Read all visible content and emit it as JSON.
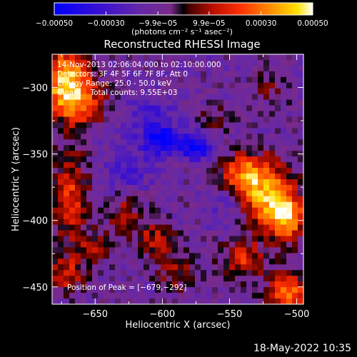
{
  "chart_data": {
    "type": "heatmap",
    "title": "Reconstructed RHESSI Image",
    "xlabel": "Heliocentric X (arcsec)",
    "ylabel": "Heliocentric Y (arcsec)",
    "xlim": [
      -682,
      -495
    ],
    "ylim": [
      -463,
      -275
    ],
    "xticks": [
      {
        "value": -650,
        "label": "−650"
      },
      {
        "value": -600,
        "label": "−600"
      },
      {
        "value": -550,
        "label": "−550"
      },
      {
        "value": -500,
        "label": "−500"
      }
    ],
    "yticks": [
      {
        "value": -300,
        "label": "−300"
      },
      {
        "value": -350,
        "label": "−350"
      },
      {
        "value": -400,
        "label": "−400"
      },
      {
        "value": -450,
        "label": "−450"
      }
    ],
    "colorbar": {
      "min": -0.0005,
      "max": 0.0005,
      "ticks": [
        {
          "value": -0.0005,
          "label": "−0.00050"
        },
        {
          "value": -0.0003,
          "label": "−0.00030"
        },
        {
          "value": -9.9e-05,
          "label": "−9.9e−05"
        },
        {
          "value": 9.9e-05,
          "label": "9.9e−05"
        },
        {
          "value": 0.0003,
          "label": "0.00030"
        },
        {
          "value": 0.0005,
          "label": "0.00050"
        }
      ],
      "unit_label": "(photons cm⁻² s⁻¹ asec⁻²)"
    },
    "annotations": [
      "14-Nov-2013 02:06:04.000 to 02:10:00.000",
      "Detectors: 3F 4F 5F 6F 7F 8F, Att 0",
      "Energy Range: 25.0 - 50.0 keV",
      "Clean     Total counts: 9.55E+03"
    ],
    "peak_label": "Position of Peak = [−679,−292]",
    "peak_position": [
      -679,
      -292
    ],
    "colors": {
      "low": "#0000ff",
      "mid": "#6a2aa6",
      "high": "#ffffff",
      "hot": "#ff3000"
    },
    "intensity_sources": [
      {
        "x": -672,
        "y": -292,
        "amp": 0.0005,
        "sx": 12,
        "sy": 16
      },
      {
        "x": -662,
        "y": -312,
        "amp": 0.00034,
        "sx": 14,
        "sy": 12
      },
      {
        "x": -525,
        "y": -380,
        "amp": 0.00044,
        "sx": 16,
        "sy": 18
      },
      {
        "x": -508,
        "y": -398,
        "amp": 0.00046,
        "sx": 10,
        "sy": 12
      },
      {
        "x": -540,
        "y": -365,
        "amp": 0.0003,
        "sx": 12,
        "sy": 10
      },
      {
        "x": -505,
        "y": -455,
        "amp": 0.00042,
        "sx": 12,
        "sy": 10
      },
      {
        "x": -540,
        "y": -430,
        "amp": 0.00028,
        "sx": 12,
        "sy": 10
      },
      {
        "x": -668,
        "y": -382,
        "amp": 0.0003,
        "sx": 10,
        "sy": 24
      },
      {
        "x": -672,
        "y": -440,
        "amp": 0.00026,
        "sx": 10,
        "sy": 10
      },
      {
        "x": -605,
        "y": -415,
        "amp": 0.00024,
        "sx": 11,
        "sy": 9
      },
      {
        "x": -628,
        "y": -395,
        "amp": 0.0002,
        "sx": 10,
        "sy": 10
      },
      {
        "x": -650,
        "y": -420,
        "amp": 0.00018,
        "sx": 9,
        "sy": 8
      },
      {
        "x": -590,
        "y": -440,
        "amp": 0.0002,
        "sx": 10,
        "sy": 9
      },
      {
        "x": -560,
        "y": -325,
        "amp": 0.00014,
        "sx": 8,
        "sy": 8
      },
      {
        "x": -520,
        "y": -300,
        "amp": 0.00012,
        "sx": 10,
        "sy": 10
      },
      {
        "x": -600,
        "y": -340,
        "amp": -0.0004,
        "sx": 10,
        "sy": 7
      },
      {
        "x": -575,
        "y": -345,
        "amp": -0.00034,
        "sx": 9,
        "sy": 7
      },
      {
        "x": -610,
        "y": -320,
        "amp": -0.00018,
        "sx": 12,
        "sy": 10
      },
      {
        "x": -625,
        "y": -360,
        "amp": -0.00016,
        "sx": 12,
        "sy": 12
      },
      {
        "x": -550,
        "y": -390,
        "amp": -0.00016,
        "sx": 10,
        "sy": 12
      }
    ]
  },
  "footer": {
    "timestamp": "18-May-2022 10:35"
  }
}
